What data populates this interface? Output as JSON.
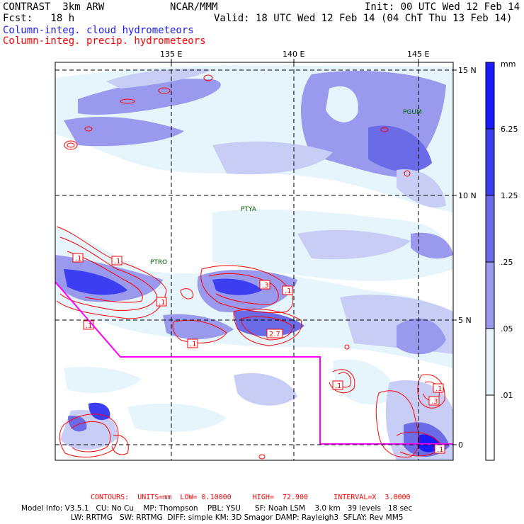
{
  "header": {
    "title": "CONTRAST  3km ARW",
    "fcst": "Fcst:   18 h",
    "center": "NCAR/MMM",
    "init": "Init: 00 UTC Wed 12 Feb 14",
    "valid": "Valid: 18 UTC Wed 12 Feb 14 (04 ChT Thu 13 Feb 14)",
    "field_cloud": "Column-integ. cloud hydrometeors",
    "field_precip": "Column-integ. precip. hydrometeors"
  },
  "map": {
    "lon_labels": [
      "135 E",
      "140 E",
      "145 E"
    ],
    "lat_labels": [
      "15 N",
      "10 N",
      "5 N",
      "0"
    ],
    "stations": [
      "PGUM",
      "PTYA",
      "PTRO"
    ],
    "contour_labels": [
      ".1",
      ".1",
      ".1",
      ".1",
      ".3",
      ".1",
      "2.7",
      ".1",
      ".1",
      ".1",
      ".3",
      ".1"
    ]
  },
  "colorbar": {
    "unit": "mm",
    "ticks": [
      "6.25",
      "1.25",
      ".25",
      ".05",
      ".01"
    ],
    "colors": [
      "#1a1aff",
      "#3d3df2",
      "#6b6be8",
      "#9999ee",
      "#c8cdf5",
      "#e6f5fb",
      "#ffffff"
    ]
  },
  "footer": {
    "contours": "CONTOURS:  UNITS=mm  LOW= 0.10000     HIGH=  72.900      INTERVAL=X  3.0000",
    "model1": "Model Info: V3.5.1   CU: No Cu    MP: Thompson    PBL: YSU      SF: Noah LSM    3.0 km   39 levels   18 sec",
    "model2": "LW: RRTMG   SW: RRTMG  DIFF: simple KM: 3D Smagor DAMP: Rayleigh3  SFLAY: Rev MM5"
  }
}
